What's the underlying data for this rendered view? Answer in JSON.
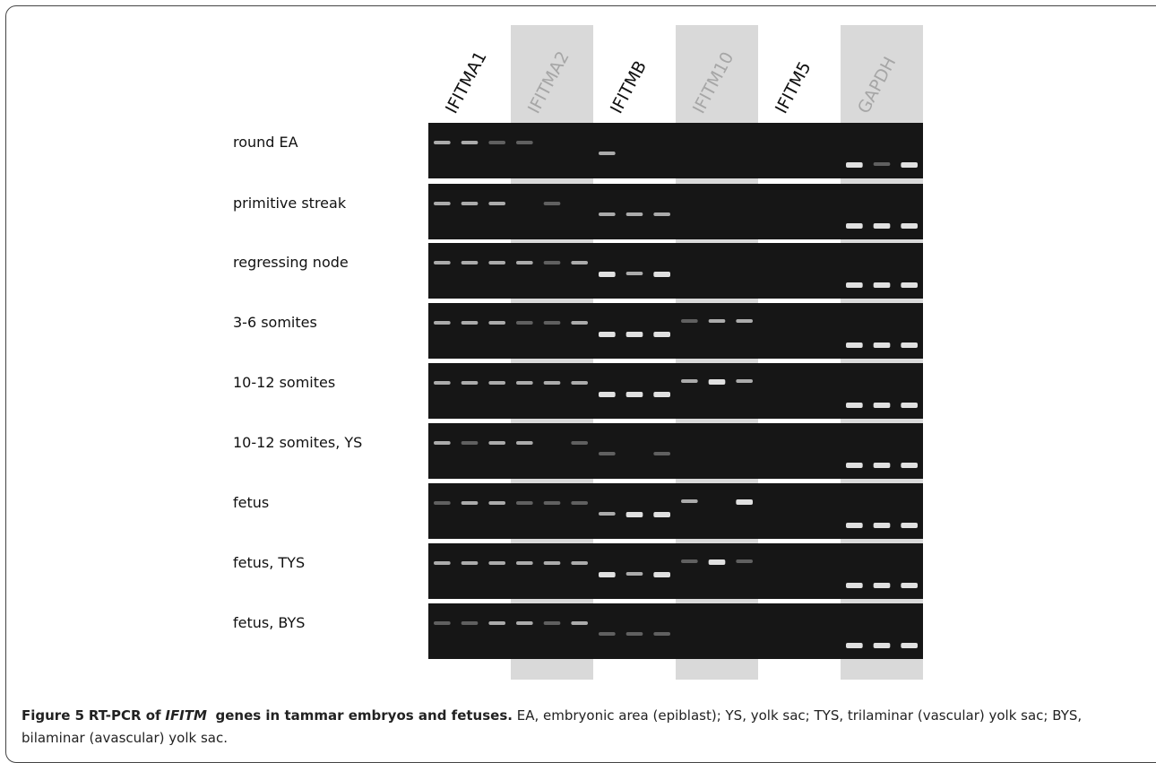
{
  "figure": {
    "genes": [
      "IFITMA1",
      "IFITMA2",
      "IFITMB",
      "IFITM10",
      "IFITM5",
      "GAPDH"
    ],
    "samples": [
      "round EA",
      "primitive streak",
      "regressing node",
      "3-6 somites",
      "10-12 somites",
      "10-12 somites, YS",
      "fetus",
      "fetus, TYS",
      "fetus, BYS"
    ]
  },
  "caption": {
    "label": "Figure 5",
    "title_start": "RT-PCR of",
    "gene": "IFITM",
    "title_end": "genes in tammar embryos and fetuses.",
    "text": "EA, embryonic area (epiblast); YS, yolk sac; TYS, trilaminar (vascular) yolk sac; BYS, bilaminar (avascular) yolk sac."
  }
}
